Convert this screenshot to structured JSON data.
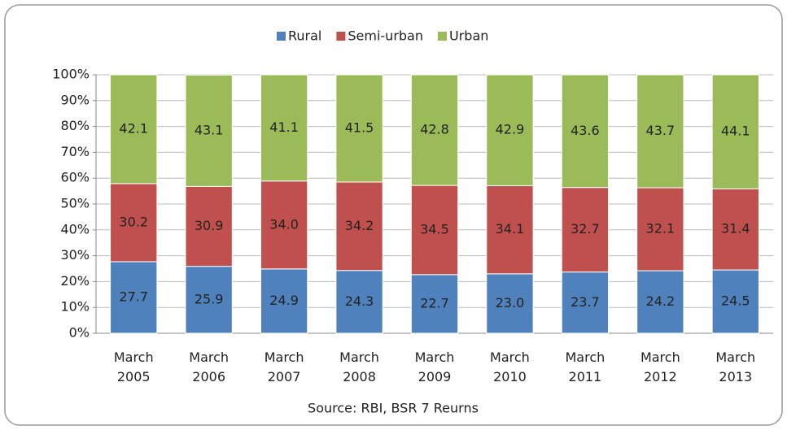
{
  "chart_data": {
    "type": "stacked_bar",
    "categories": [
      "March 2005",
      "March 2006",
      "March 2007",
      "March 2008",
      "March 2009",
      "March 2010",
      "March 2011",
      "March 2012",
      "March 2013"
    ],
    "series": [
      {
        "name": "Rural",
        "color": "#4f81bd",
        "values": [
          27.7,
          25.9,
          24.9,
          24.3,
          22.7,
          23.0,
          23.7,
          24.2,
          24.5
        ],
        "value_labels": [
          "27.7",
          "25.9",
          "24.9",
          "24.3",
          "22.7",
          "23.0",
          "23.7",
          "24.2",
          "24.5"
        ]
      },
      {
        "name": "Semi-urban",
        "color": "#c0504d",
        "values": [
          30.2,
          30.9,
          34.0,
          34.2,
          34.5,
          34.1,
          32.7,
          32.1,
          31.4
        ],
        "value_labels": [
          "30.2",
          "30.9",
          "34.0",
          "34.2",
          "34.5",
          "34.1",
          "32.7",
          "32.1",
          "31.4"
        ]
      },
      {
        "name": "Urban",
        "color": "#9bbb59",
        "values": [
          42.1,
          43.1,
          41.1,
          41.5,
          42.8,
          42.9,
          43.6,
          43.7,
          44.1
        ],
        "value_labels": [
          "42.1",
          "43.1",
          "41.1",
          "41.5",
          "42.8",
          "42.9",
          "43.6",
          "43.7",
          "44.1"
        ]
      }
    ],
    "ylim": [
      0,
      100
    ],
    "yticks": [
      {
        "value": 0,
        "label": "0%"
      },
      {
        "value": 10,
        "label": "10%"
      },
      {
        "value": 20,
        "label": "20%"
      },
      {
        "value": 30,
        "label": "30%"
      },
      {
        "value": 40,
        "label": "40%"
      },
      {
        "value": 50,
        "label": "50%"
      },
      {
        "value": 60,
        "label": "60%"
      },
      {
        "value": 70,
        "label": "70%"
      },
      {
        "value": 80,
        "label": "80%"
      },
      {
        "value": 90,
        "label": "90%"
      },
      {
        "value": 100,
        "label": "100%"
      }
    ],
    "grid": true,
    "legend": "top",
    "caption": "Source: RBI, BSR 7 Reurns"
  }
}
